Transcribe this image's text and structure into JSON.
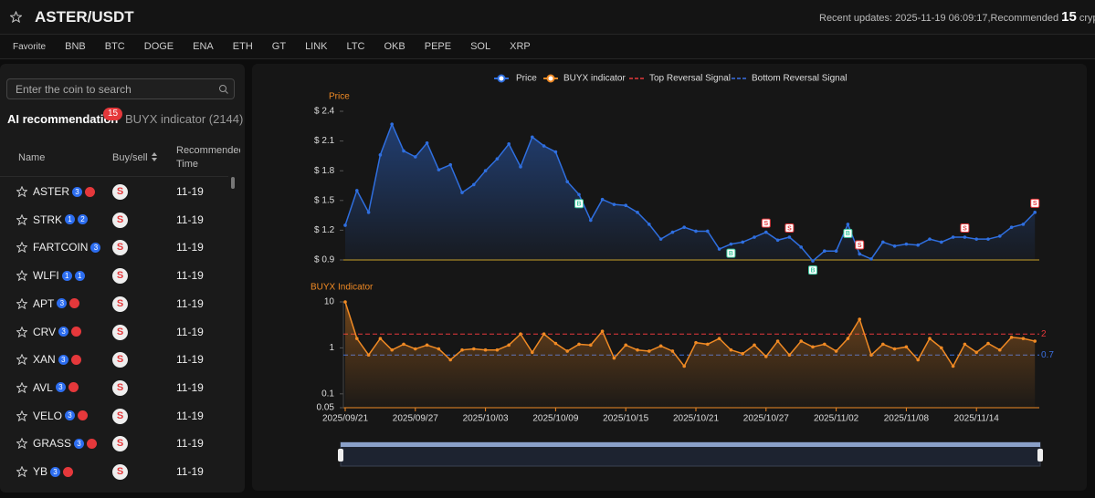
{
  "header": {
    "title": "ASTER/USDT",
    "update_prefix": "Recent updates: 2025-11-19 06:09:17,Recommended",
    "recommended_count": 15,
    "update_suffix": "cryptocurren"
  },
  "tabs": [
    "Favorite",
    "BNB",
    "BTC",
    "DOGE",
    "ENA",
    "ETH",
    "GT",
    "LINK",
    "LTC",
    "OKB",
    "PEPE",
    "SOL",
    "XRP"
  ],
  "sidebar": {
    "search_placeholder": "Enter the coin to search",
    "tabs": [
      {
        "label": "AI recommendation",
        "badge": 15
      },
      {
        "label": "BUYX indicator (2144)"
      }
    ],
    "columns": [
      "Name",
      "Buy/sell",
      "Recommended Time"
    ],
    "rows": [
      {
        "name": "ASTER",
        "badges": [
          3
        ],
        "hot": true,
        "signal": "S",
        "time": "11-19"
      },
      {
        "name": "STRK",
        "badges": [
          1,
          2
        ],
        "hot": false,
        "signal": "S",
        "time": "11-19"
      },
      {
        "name": "FARTCOIN",
        "badges": [
          3
        ],
        "hot": false,
        "signal": "S",
        "time": "11-19"
      },
      {
        "name": "WLFI",
        "badges": [
          1,
          1
        ],
        "hot": false,
        "signal": "S",
        "time": "11-19"
      },
      {
        "name": "APT",
        "badges": [
          3
        ],
        "hot": true,
        "signal": "S",
        "time": "11-19"
      },
      {
        "name": "CRV",
        "badges": [
          3
        ],
        "hot": true,
        "signal": "S",
        "time": "11-19"
      },
      {
        "name": "XAN",
        "badges": [
          3
        ],
        "hot": true,
        "signal": "S",
        "time": "11-19"
      },
      {
        "name": "AVL",
        "badges": [
          3
        ],
        "hot": true,
        "signal": "S",
        "time": "11-19"
      },
      {
        "name": "VELO",
        "badges": [
          3
        ],
        "hot": true,
        "signal": "S",
        "time": "11-19"
      },
      {
        "name": "GRASS",
        "badges": [
          3
        ],
        "hot": true,
        "signal": "S",
        "time": "11-19"
      },
      {
        "name": "YB",
        "badges": [
          3
        ],
        "hot": true,
        "signal": "S",
        "time": "11-19"
      }
    ]
  },
  "chart_data": {
    "type": "line",
    "legend": "top",
    "categories": [
      "2025/09/21",
      null,
      null,
      null,
      null,
      null,
      "2025/09/27",
      null,
      null,
      null,
      null,
      null,
      "2025/10/03",
      null,
      null,
      null,
      null,
      null,
      "2025/10/09",
      null,
      null,
      null,
      null,
      null,
      "2025/10/15",
      null,
      null,
      null,
      null,
      null,
      "2025/10/21",
      null,
      null,
      null,
      null,
      null,
      "2025/10/27",
      null,
      null,
      null,
      null,
      null,
      "2025/11/02",
      null,
      null,
      null,
      null,
      null,
      "2025/11/08",
      null,
      null,
      null,
      null,
      null,
      "2025/11/14",
      null,
      null,
      null,
      null,
      null
    ],
    "ylabel": "Price",
    "ylim": [
      0.9,
      2.4
    ],
    "yticks": [
      {
        "value": 0.9,
        "label": "$ 0.9"
      },
      {
        "value": 1.2,
        "label": "$ 1.2"
      },
      {
        "value": 1.5,
        "label": "$ 1.5"
      },
      {
        "value": 1.8,
        "label": "$ 1.8"
      },
      {
        "value": 2.1,
        "label": "$ 2.1"
      },
      {
        "value": 2.4,
        "label": "$ 2.4"
      }
    ],
    "y2label": "BUYX Indicator",
    "y2lim": [
      0.05,
      10
    ],
    "y2ticks": [
      0.05,
      0.1,
      1,
      10
    ],
    "y2_log": true,
    "series": [
      {
        "name": "Price",
        "color": "#2f6fe0",
        "values": [
          1.25,
          1.6,
          1.38,
          1.96,
          2.27,
          2.0,
          1.94,
          2.08,
          1.81,
          1.86,
          1.58,
          1.66,
          1.8,
          1.92,
          2.07,
          1.84,
          2.14,
          2.05,
          1.99,
          1.69,
          1.56,
          1.3,
          1.51,
          1.46,
          1.45,
          1.38,
          1.26,
          1.11,
          1.18,
          1.23,
          1.19,
          1.19,
          1.01,
          1.06,
          1.08,
          1.13,
          1.18,
          1.1,
          1.13,
          1.03,
          0.89,
          0.99,
          0.99,
          1.26,
          0.96,
          0.91,
          1.08,
          1.04,
          1.06,
          1.05,
          1.11,
          1.08,
          1.13,
          1.13,
          1.11,
          1.11,
          1.14,
          1.23,
          1.26,
          1.38
        ]
      },
      {
        "name": "BUYX indicator",
        "color": "#f08a24",
        "axis": "y2",
        "values": [
          10,
          1.6,
          0.7,
          1.6,
          0.9,
          1.2,
          0.95,
          1.15,
          0.95,
          0.55,
          0.9,
          0.95,
          0.9,
          0.9,
          1.15,
          2.0,
          0.8,
          2.0,
          1.25,
          0.85,
          1.2,
          1.15,
          2.3,
          0.6,
          1.15,
          0.9,
          0.85,
          1.1,
          0.85,
          0.4,
          1.3,
          1.2,
          1.6,
          0.9,
          0.75,
          1.15,
          0.65,
          1.4,
          0.7,
          1.4,
          1.05,
          1.2,
          0.85,
          1.6,
          4.2,
          0.7,
          1.2,
          0.95,
          1.05,
          0.55,
          1.6,
          1.0,
          0.4,
          1.2,
          0.8,
          1.25,
          0.9,
          1.7,
          1.6,
          1.4
        ]
      }
    ],
    "hlines": [
      {
        "name": "Top Reversal Signal",
        "color": "#e5383b",
        "axis": "y2",
        "value": 2
      },
      {
        "name": "Bottom Reversal Signal",
        "color": "#3a6fe0",
        "axis": "y2",
        "value": 0.7
      }
    ],
    "signals": [
      {
        "index": 20,
        "label": "B",
        "color": "#3ec9a0"
      },
      {
        "index": 33,
        "label": "B",
        "color": "#3ec9a0"
      },
      {
        "index": 36,
        "label": "S",
        "color": "#e5383b"
      },
      {
        "index": 38,
        "label": "S",
        "color": "#e5383b"
      },
      {
        "index": 40,
        "label": "B",
        "color": "#3ec9a0"
      },
      {
        "index": 43,
        "label": "B",
        "color": "#3ec9a0"
      },
      {
        "index": 44,
        "label": "S",
        "color": "#e5383b"
      },
      {
        "index": 53,
        "label": "S",
        "color": "#e5383b"
      },
      {
        "index": 59,
        "label": "S",
        "color": "#e5383b"
      }
    ]
  }
}
